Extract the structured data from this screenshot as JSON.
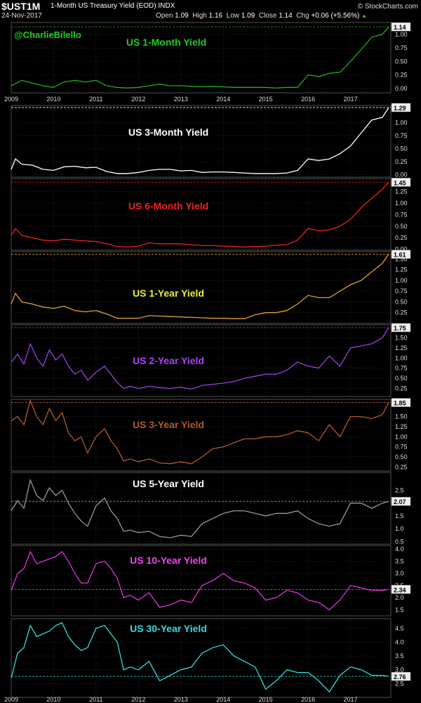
{
  "header": {
    "symbol": "$UST1M",
    "description": "1-Month US Treasury Yield (EOD)",
    "exchange": "INDX",
    "date": "24-Nov-2017",
    "site": "© StockCharts.com",
    "open_label": "Open",
    "open": "1.09",
    "high_label": "High",
    "high": "1.16",
    "low_label": "Low",
    "low": "1.09",
    "close_label": "Close",
    "close": "1.14",
    "chg_label": "Chg",
    "chg": "+0.06 (+5.56%)",
    "up_arrow": "▲"
  },
  "watermark": "@CharlieBilello",
  "x_axis_labels": [
    "2009",
    "2010",
    "2011",
    "2012",
    "2013",
    "2014",
    "2015",
    "2016",
    "2017"
  ],
  "colors": {
    "background": "#000000",
    "grid": "#3a3a3a",
    "panel_border": "#666666"
  },
  "chart_data": [
    {
      "type": "line",
      "title": "US 1-Month Yield",
      "color": "#22aa22",
      "title_color": "#22cc22",
      "last_value": "1.14",
      "ylim": [
        -0.08,
        1.22
      ],
      "yticks": [
        "0.00",
        "0.25",
        "0.50",
        "0.75",
        "1.00"
      ],
      "x": [
        2009.0,
        2009.25,
        2009.5,
        2009.75,
        2010.0,
        2010.25,
        2010.5,
        2010.75,
        2011.0,
        2011.25,
        2011.5,
        2011.75,
        2012.0,
        2012.25,
        2012.5,
        2012.75,
        2013.0,
        2013.25,
        2013.5,
        2013.75,
        2014.0,
        2014.25,
        2014.5,
        2014.75,
        2015.0,
        2015.25,
        2015.5,
        2015.75,
        2016.0,
        2016.25,
        2016.5,
        2016.75,
        2017.0,
        2017.25,
        2017.5,
        2017.75,
        2017.9
      ],
      "y": [
        0.05,
        0.15,
        0.1,
        0.05,
        0.02,
        0.12,
        0.15,
        0.12,
        0.15,
        0.05,
        0.02,
        0.01,
        0.02,
        0.05,
        0.08,
        0.05,
        0.05,
        0.04,
        0.03,
        0.04,
        0.03,
        0.02,
        0.02,
        0.02,
        0.02,
        0.01,
        0.02,
        0.02,
        0.25,
        0.22,
        0.28,
        0.3,
        0.5,
        0.72,
        0.95,
        1.0,
        1.14
      ]
    },
    {
      "type": "line",
      "title": "US 3-Month Yield",
      "color": "#ffffff",
      "title_color": "#ffffff",
      "last_value": "1.29",
      "ylim": [
        -0.05,
        1.33
      ],
      "yticks": [
        "0.00",
        "0.25",
        "0.50",
        "0.75",
        "1.00",
        "1.25"
      ],
      "x": [
        2009.0,
        2009.1,
        2009.25,
        2009.5,
        2009.75,
        2010.0,
        2010.25,
        2010.5,
        2010.75,
        2011.0,
        2011.25,
        2011.5,
        2011.75,
        2012.0,
        2012.25,
        2012.5,
        2012.75,
        2013.0,
        2013.25,
        2013.5,
        2013.75,
        2014.0,
        2014.25,
        2014.5,
        2014.75,
        2015.0,
        2015.25,
        2015.5,
        2015.75,
        2016.0,
        2016.25,
        2016.5,
        2016.75,
        2017.0,
        2017.25,
        2017.5,
        2017.75,
        2017.9
      ],
      "y": [
        0.1,
        0.3,
        0.2,
        0.18,
        0.1,
        0.08,
        0.15,
        0.16,
        0.13,
        0.14,
        0.06,
        0.02,
        0.02,
        0.04,
        0.08,
        0.1,
        0.1,
        0.07,
        0.08,
        0.04,
        0.05,
        0.05,
        0.04,
        0.03,
        0.02,
        0.02,
        0.02,
        0.03,
        0.08,
        0.3,
        0.27,
        0.3,
        0.4,
        0.55,
        0.8,
        1.05,
        1.1,
        1.29
      ]
    },
    {
      "type": "line",
      "title": "US 6-Month Yield",
      "color": "#ee2222",
      "title_color": "#ee2222",
      "last_value": "1.45",
      "ylim": [
        -0.02,
        1.53
      ],
      "yticks": [
        "0.00",
        "0.25",
        "0.50",
        "0.75",
        "1.00",
        "1.25"
      ],
      "x": [
        2009.0,
        2009.1,
        2009.25,
        2009.5,
        2009.75,
        2010.0,
        2010.25,
        2010.5,
        2010.75,
        2011.0,
        2011.25,
        2011.5,
        2011.75,
        2012.0,
        2012.25,
        2012.5,
        2012.75,
        2013.0,
        2013.25,
        2013.5,
        2013.75,
        2014.0,
        2014.25,
        2014.5,
        2014.75,
        2015.0,
        2015.25,
        2015.5,
        2015.75,
        2016.0,
        2016.25,
        2016.5,
        2016.75,
        2017.0,
        2017.25,
        2017.5,
        2017.75,
        2017.9
      ],
      "y": [
        0.3,
        0.45,
        0.3,
        0.25,
        0.2,
        0.18,
        0.22,
        0.2,
        0.18,
        0.17,
        0.12,
        0.06,
        0.05,
        0.07,
        0.14,
        0.12,
        0.12,
        0.12,
        0.1,
        0.08,
        0.08,
        0.07,
        0.06,
        0.05,
        0.06,
        0.07,
        0.09,
        0.1,
        0.2,
        0.45,
        0.4,
        0.42,
        0.5,
        0.65,
        0.9,
        1.1,
        1.3,
        1.45
      ]
    },
    {
      "type": "line",
      "title": "US 1-Year Yield",
      "color": "#e0a030",
      "title_color": "#eeee33",
      "last_value": "1.61",
      "ylim": [
        0.0,
        1.67
      ],
      "yticks": [
        "0.25",
        "0.50",
        "0.75",
        "1.00",
        "1.25",
        "1.50"
      ],
      "x": [
        2009.0,
        2009.1,
        2009.25,
        2009.5,
        2009.75,
        2010.0,
        2010.25,
        2010.5,
        2010.75,
        2011.0,
        2011.25,
        2011.5,
        2011.75,
        2012.0,
        2012.25,
        2012.5,
        2012.75,
        2013.0,
        2013.25,
        2013.5,
        2013.75,
        2014.0,
        2014.25,
        2014.5,
        2014.75,
        2015.0,
        2015.25,
        2015.5,
        2015.75,
        2016.0,
        2016.25,
        2016.5,
        2016.75,
        2017.0,
        2017.25,
        2017.5,
        2017.75,
        2017.9
      ],
      "y": [
        0.45,
        0.7,
        0.5,
        0.45,
        0.38,
        0.35,
        0.4,
        0.3,
        0.27,
        0.3,
        0.22,
        0.12,
        0.12,
        0.12,
        0.18,
        0.17,
        0.16,
        0.15,
        0.14,
        0.13,
        0.12,
        0.12,
        0.11,
        0.11,
        0.2,
        0.25,
        0.25,
        0.3,
        0.45,
        0.65,
        0.6,
        0.6,
        0.75,
        0.9,
        1.0,
        1.2,
        1.4,
        1.61
      ]
    },
    {
      "type": "line",
      "title": "US 2-Year Yield",
      "color": "#9a3fe0",
      "title_color": "#aa44ff",
      "last_value": "1.75",
      "ylim": [
        0.05,
        1.82
      ],
      "yticks": [
        "0.25",
        "0.50",
        "0.75",
        "1.00",
        "1.25",
        "1.50"
      ],
      "x": [
        2009.0,
        2009.15,
        2009.3,
        2009.45,
        2009.6,
        2009.75,
        2009.9,
        2010.05,
        2010.2,
        2010.35,
        2010.5,
        2010.65,
        2010.8,
        2011.0,
        2011.2,
        2011.35,
        2011.5,
        2011.65,
        2011.8,
        2012.0,
        2012.25,
        2012.5,
        2012.75,
        2013.0,
        2013.25,
        2013.5,
        2013.75,
        2014.0,
        2014.25,
        2014.5,
        2014.75,
        2015.0,
        2015.25,
        2015.5,
        2015.75,
        2016.0,
        2016.25,
        2016.5,
        2016.75,
        2017.0,
        2017.25,
        2017.5,
        2017.75,
        2017.9
      ],
      "y": [
        0.9,
        1.1,
        0.85,
        1.35,
        1.0,
        0.8,
        1.2,
        0.95,
        1.1,
        0.8,
        0.6,
        0.7,
        0.45,
        0.65,
        0.8,
        0.6,
        0.4,
        0.25,
        0.3,
        0.25,
        0.3,
        0.27,
        0.25,
        0.28,
        0.23,
        0.32,
        0.35,
        0.38,
        0.42,
        0.5,
        0.55,
        0.6,
        0.6,
        0.7,
        0.9,
        0.8,
        0.75,
        1.05,
        0.8,
        1.25,
        1.3,
        1.35,
        1.5,
        1.75
      ]
    },
    {
      "type": "line",
      "title": "US 3-Year Yield",
      "color": "#b05a30",
      "title_color": "#b05a30",
      "last_value": "1.85",
      "ylim": [
        0.15,
        1.93
      ],
      "yticks": [
        "0.25",
        "0.50",
        "0.75",
        "1.00",
        "1.25",
        "1.50"
      ],
      "x": [
        2009.0,
        2009.15,
        2009.3,
        2009.45,
        2009.6,
        2009.75,
        2009.9,
        2010.05,
        2010.2,
        2010.35,
        2010.5,
        2010.65,
        2010.8,
        2011.0,
        2011.2,
        2011.35,
        2011.5,
        2011.65,
        2011.8,
        2012.0,
        2012.25,
        2012.5,
        2012.75,
        2013.0,
        2013.25,
        2013.5,
        2013.75,
        2014.0,
        2014.25,
        2014.5,
        2014.75,
        2015.0,
        2015.25,
        2015.5,
        2015.75,
        2016.0,
        2016.25,
        2016.5,
        2016.75,
        2017.0,
        2017.25,
        2017.5,
        2017.75,
        2017.9
      ],
      "y": [
        1.4,
        1.5,
        1.3,
        1.9,
        1.5,
        1.3,
        1.7,
        1.4,
        1.6,
        1.1,
        0.9,
        1.0,
        0.6,
        1.0,
        1.2,
        0.9,
        0.7,
        0.4,
        0.45,
        0.38,
        0.45,
        0.35,
        0.33,
        0.38,
        0.33,
        0.5,
        0.7,
        0.75,
        0.85,
        0.95,
        0.95,
        1.0,
        1.0,
        1.05,
        1.15,
        1.1,
        0.9,
        1.3,
        1.0,
        1.5,
        1.5,
        1.45,
        1.55,
        1.85
      ]
    },
    {
      "type": "line",
      "title": "US 5-Year Yield",
      "color": "#999999",
      "title_color": "#ffffff",
      "last_value": "2.07",
      "ylim": [
        0.4,
        3.2
      ],
      "yticks": [
        "0.5",
        "1.0",
        "1.5",
        "2.0",
        "2.5"
      ],
      "x": [
        2009.0,
        2009.15,
        2009.3,
        2009.45,
        2009.6,
        2009.75,
        2009.9,
        2010.05,
        2010.2,
        2010.35,
        2010.5,
        2010.65,
        2010.8,
        2011.0,
        2011.2,
        2011.35,
        2011.5,
        2011.65,
        2011.8,
        2012.0,
        2012.25,
        2012.5,
        2012.75,
        2013.0,
        2013.25,
        2013.5,
        2013.75,
        2014.0,
        2014.25,
        2014.5,
        2014.75,
        2015.0,
        2015.25,
        2015.5,
        2015.75,
        2016.0,
        2016.25,
        2016.5,
        2016.75,
        2017.0,
        2017.25,
        2017.5,
        2017.75,
        2017.9
      ],
      "y": [
        1.7,
        2.1,
        1.8,
        2.9,
        2.3,
        2.1,
        2.6,
        2.3,
        2.5,
        2.0,
        1.6,
        1.3,
        1.1,
        1.9,
        2.2,
        1.7,
        1.4,
        0.9,
        0.95,
        0.85,
        0.9,
        0.7,
        0.65,
        0.75,
        0.7,
        1.2,
        1.4,
        1.6,
        1.7,
        1.7,
        1.6,
        1.5,
        1.6,
        1.6,
        1.7,
        1.4,
        1.2,
        1.1,
        1.2,
        2.0,
        2.0,
        1.8,
        2.0,
        2.07
      ]
    },
    {
      "type": "line",
      "title": "US 10-Year Yield",
      "color": "#dd33dd",
      "title_color": "#ee44ee",
      "last_value": "2.34",
      "ylim": [
        1.25,
        4.15
      ],
      "yticks": [
        "1.5",
        "2.0",
        "2.5",
        "3.0",
        "3.5",
        "4.0"
      ],
      "x": [
        2009.0,
        2009.15,
        2009.3,
        2009.45,
        2009.6,
        2009.75,
        2009.9,
        2010.05,
        2010.2,
        2010.35,
        2010.5,
        2010.65,
        2010.8,
        2011.0,
        2011.2,
        2011.35,
        2011.5,
        2011.65,
        2011.8,
        2012.0,
        2012.25,
        2012.5,
        2012.75,
        2013.0,
        2013.25,
        2013.5,
        2013.75,
        2014.0,
        2014.25,
        2014.5,
        2014.75,
        2015.0,
        2015.25,
        2015.5,
        2015.75,
        2016.0,
        2016.25,
        2016.5,
        2016.75,
        2017.0,
        2017.25,
        2017.5,
        2017.75,
        2017.9
      ],
      "y": [
        2.3,
        3.0,
        3.2,
        3.9,
        3.4,
        3.5,
        3.6,
        3.7,
        3.9,
        3.5,
        3.0,
        2.6,
        2.6,
        3.4,
        3.5,
        3.2,
        2.8,
        2.0,
        2.1,
        1.9,
        2.2,
        1.6,
        1.7,
        1.9,
        1.8,
        2.5,
        2.7,
        3.0,
        2.7,
        2.6,
        2.4,
        1.9,
        2.0,
        2.3,
        2.2,
        1.9,
        1.8,
        1.5,
        1.9,
        2.5,
        2.4,
        2.3,
        2.3,
        2.34
      ]
    },
    {
      "type": "line",
      "title": "US 30-Year Yield",
      "color": "#33dddd",
      "title_color": "#33dddd",
      "last_value": "2.76",
      "ylim": [
        2.0,
        4.85
      ],
      "yticks": [
        "2.5",
        "3.0",
        "3.5",
        "4.0",
        "4.5"
      ],
      "x": [
        2009.0,
        2009.15,
        2009.3,
        2009.45,
        2009.6,
        2009.75,
        2009.9,
        2010.05,
        2010.2,
        2010.35,
        2010.5,
        2010.65,
        2010.8,
        2011.0,
        2011.2,
        2011.35,
        2011.5,
        2011.65,
        2011.8,
        2012.0,
        2012.25,
        2012.5,
        2012.75,
        2013.0,
        2013.25,
        2013.5,
        2013.75,
        2014.0,
        2014.25,
        2014.5,
        2014.75,
        2015.0,
        2015.25,
        2015.5,
        2015.75,
        2016.0,
        2016.25,
        2016.5,
        2016.75,
        2017.0,
        2017.25,
        2017.5,
        2017.75,
        2017.9
      ],
      "y": [
        2.7,
        3.6,
        3.8,
        4.6,
        4.2,
        4.3,
        4.4,
        4.6,
        4.7,
        4.2,
        3.9,
        3.7,
        3.8,
        4.5,
        4.6,
        4.3,
        4.0,
        3.0,
        3.1,
        3.0,
        3.3,
        2.6,
        2.8,
        3.0,
        3.1,
        3.6,
        3.8,
        3.9,
        3.5,
        3.3,
        3.1,
        2.3,
        2.6,
        3.0,
        2.9,
        2.9,
        2.6,
        2.2,
        2.8,
        3.1,
        3.0,
        2.8,
        2.8,
        2.76
      ]
    }
  ]
}
